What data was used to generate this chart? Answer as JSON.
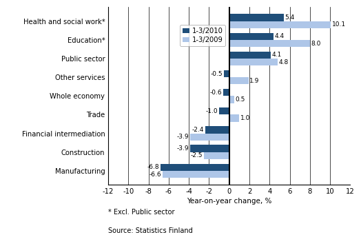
{
  "categories": [
    "Manufacturing",
    "Construction",
    "Financial intermediation",
    "Trade",
    "Whole economy",
    "Other services",
    "Public sector",
    "Education*",
    "Health and social work*"
  ],
  "values_2010": [
    -6.8,
    -3.9,
    -2.4,
    -1.0,
    -0.6,
    -0.5,
    4.1,
    4.4,
    5.4
  ],
  "values_2009": [
    -6.6,
    -2.5,
    -3.9,
    1.0,
    0.5,
    1.9,
    4.8,
    8.0,
    10.1
  ],
  "color_2010": "#1f4e79",
  "color_2009": "#aec6e8",
  "xlim": [
    -12,
    12
  ],
  "xticks": [
    -12,
    -10,
    -8,
    -6,
    -4,
    -2,
    0,
    2,
    4,
    6,
    8,
    10,
    12
  ],
  "xlabel": "Year-on-year change, %",
  "legend_2010": "1-3/2010",
  "legend_2009": "1-3/2009",
  "footnote1": "* Excl. Public sector",
  "footnote2": "Source: Statistics Finland",
  "bar_height": 0.38
}
